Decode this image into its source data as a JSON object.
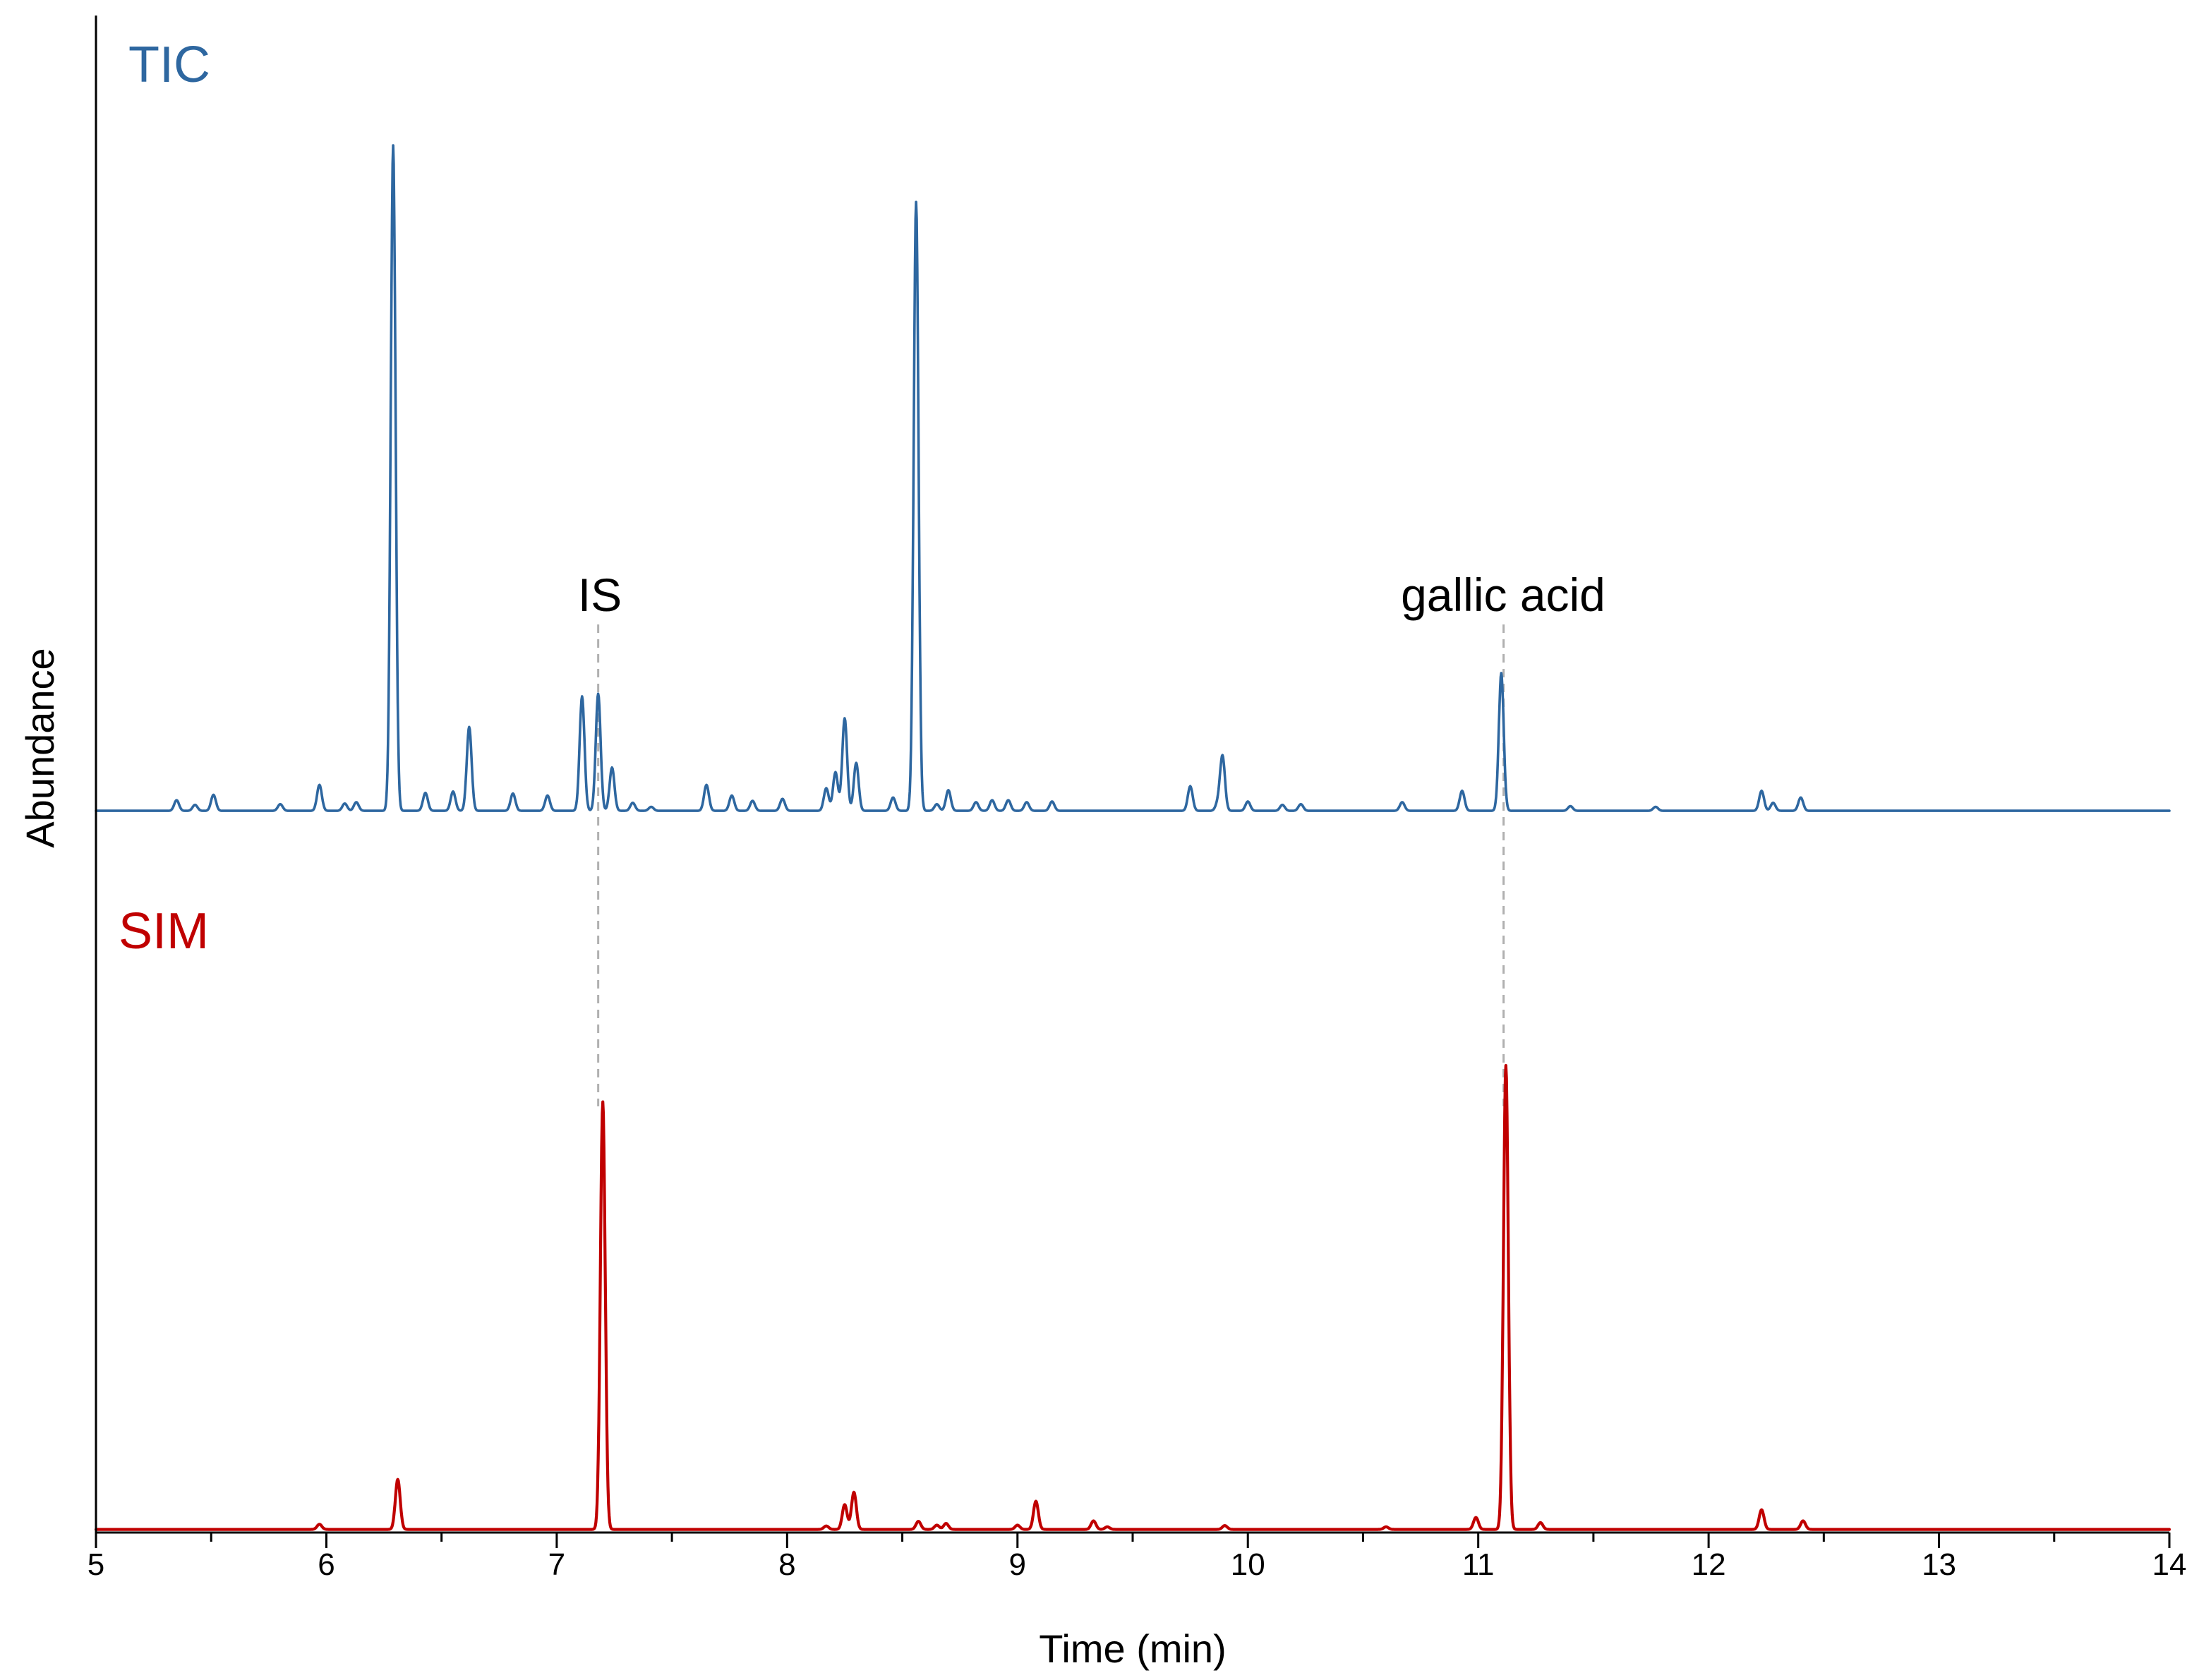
{
  "chart_data": {
    "type": "line",
    "title": "",
    "xlabel": "Time (min)",
    "ylabel": "Abundance",
    "xlim": [
      5,
      14
    ],
    "xticks": [
      "5",
      "6",
      "7",
      "8",
      "9",
      "10",
      "11",
      "12",
      "13",
      "14"
    ],
    "grid": false,
    "legend": "none",
    "series": [
      {
        "name": "TIC",
        "color": "#2e67a0",
        "baseline": 2,
        "peaks": [
          [
            5.35,
            1.6
          ],
          [
            5.43,
            0.9
          ],
          [
            5.51,
            2.4
          ],
          [
            5.8,
            1.0
          ],
          [
            5.97,
            3.9
          ],
          [
            6.08,
            1.1
          ],
          [
            6.13,
            1.3
          ],
          [
            6.29,
            100
          ],
          [
            6.43,
            2.7
          ],
          [
            6.55,
            2.9
          ],
          [
            6.62,
            12.6
          ],
          [
            6.81,
            2.6
          ],
          [
            6.96,
            2.3
          ],
          [
            7.11,
            17.2
          ],
          [
            7.18,
            17.6
          ],
          [
            7.24,
            6.5
          ],
          [
            7.33,
            1.2
          ],
          [
            7.41,
            0.6
          ],
          [
            7.65,
            3.9
          ],
          [
            7.76,
            2.3
          ],
          [
            7.85,
            1.5
          ],
          [
            7.98,
            1.8
          ],
          [
            8.17,
            3.4
          ],
          [
            8.21,
            5.8
          ],
          [
            8.25,
            13.9
          ],
          [
            8.3,
            7.2
          ],
          [
            8.46,
            2.0
          ],
          [
            8.56,
            91.5
          ],
          [
            8.65,
            1.0
          ],
          [
            8.7,
            3.1
          ],
          [
            8.82,
            1.3
          ],
          [
            8.89,
            1.6
          ],
          [
            8.96,
            1.6
          ],
          [
            9.04,
            1.3
          ],
          [
            9.15,
            1.4
          ],
          [
            9.75,
            3.7
          ],
          [
            9.87,
            1.1
          ],
          [
            9.89,
            8.2
          ],
          [
            10.0,
            1.4
          ],
          [
            10.15,
            0.9
          ],
          [
            10.23,
            1.0
          ],
          [
            10.67,
            1.3
          ],
          [
            10.93,
            3.0
          ],
          [
            11.1,
            20.7
          ],
          [
            11.4,
            0.7
          ],
          [
            11.77,
            0.6
          ],
          [
            12.23,
            3.0
          ],
          [
            12.28,
            1.2
          ],
          [
            12.4,
            2.0
          ]
        ]
      },
      {
        "name": "SIM",
        "color": "#c00000",
        "baseline": 0.4,
        "peaks": [
          [
            5.97,
            1.2
          ],
          [
            6.31,
            11.7
          ],
          [
            7.2,
            100
          ],
          [
            8.17,
            0.8
          ],
          [
            8.25,
            5.8
          ],
          [
            8.29,
            8.7
          ],
          [
            8.57,
            1.9
          ],
          [
            8.65,
            1.0
          ],
          [
            8.69,
            1.4
          ],
          [
            9.0,
            1.0
          ],
          [
            9.08,
            6.6
          ],
          [
            9.33,
            2.0
          ],
          [
            9.39,
            0.6
          ],
          [
            9.9,
            0.9
          ],
          [
            10.6,
            0.6
          ],
          [
            10.99,
            2.8
          ],
          [
            11.12,
            108.5
          ],
          [
            11.27,
            1.6
          ],
          [
            12.23,
            4.6
          ],
          [
            12.41,
            2.0
          ]
        ]
      }
    ],
    "annotations": [
      {
        "text": "IS",
        "x": 7.18
      },
      {
        "text": "gallic acid",
        "x": 11.11
      }
    ]
  }
}
